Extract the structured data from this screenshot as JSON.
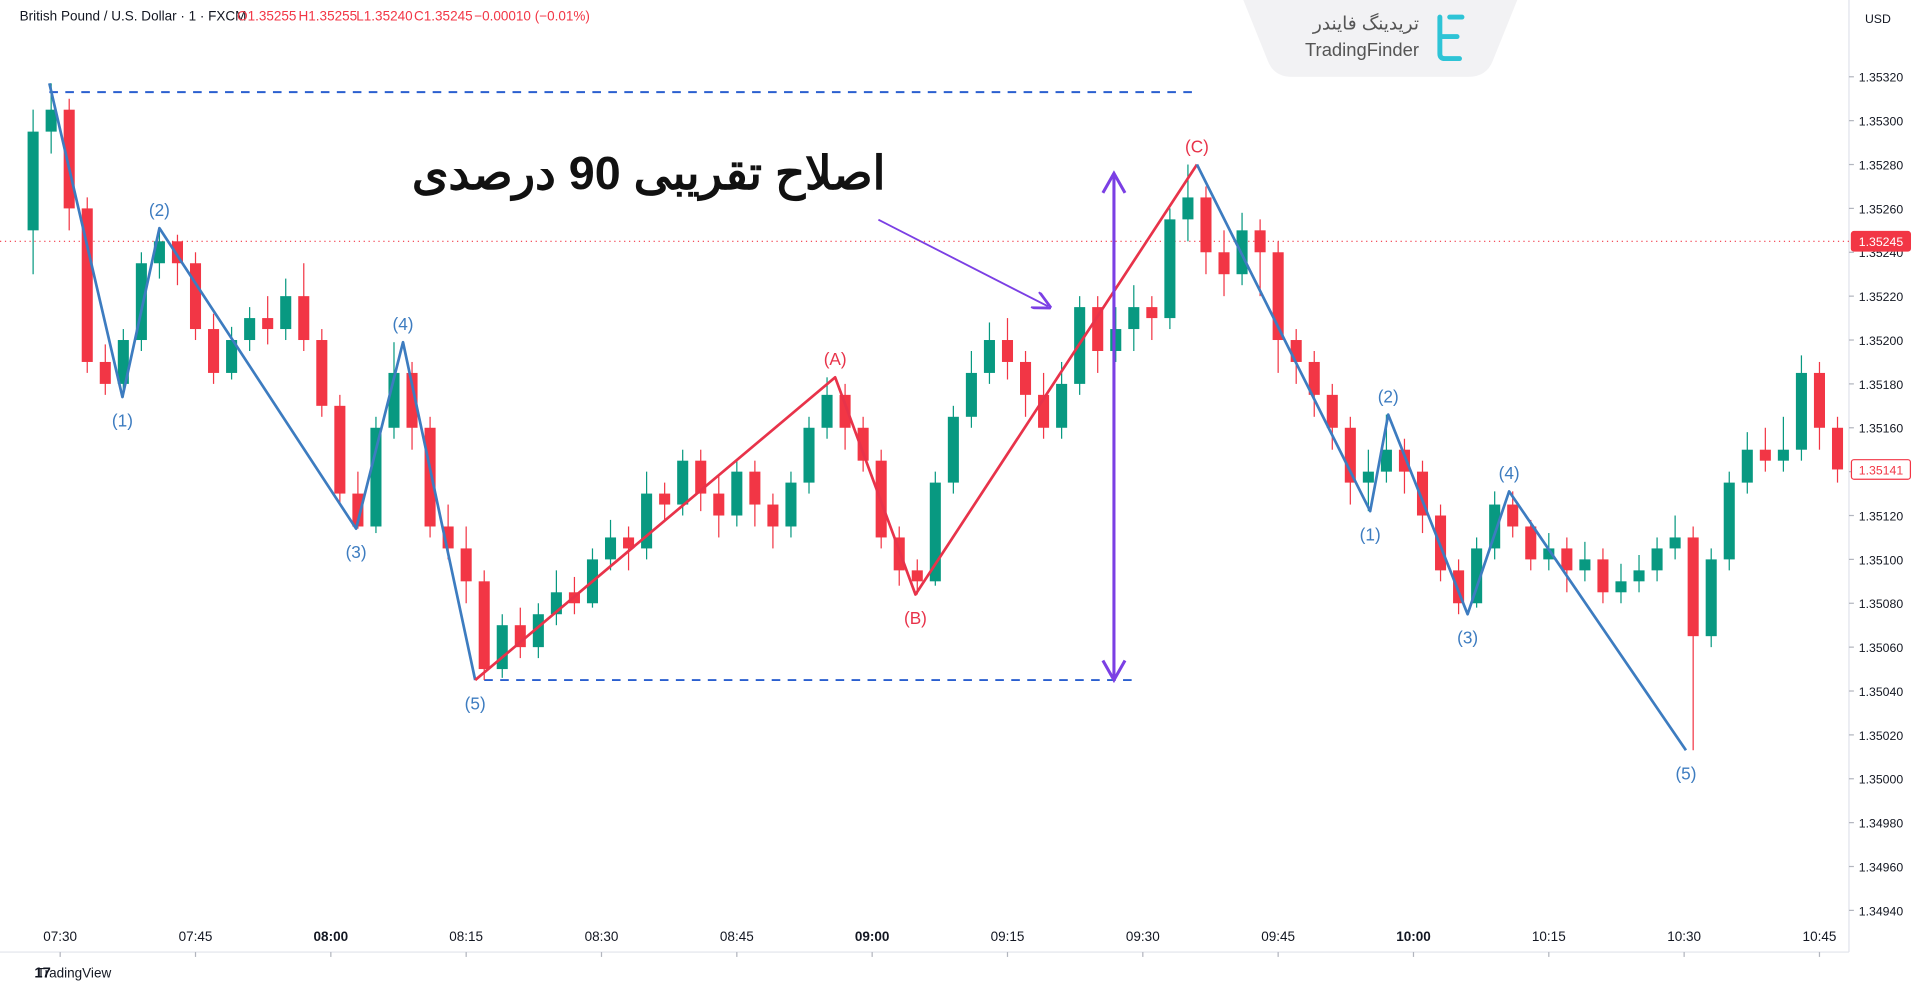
{
  "chart_data": {
    "type": "candlestick",
    "header": {
      "symbol": "British Pound / U.S. Dollar · 1 · FXCM",
      "open": "O1.35255",
      "high": "H1.35255",
      "low": "L1.35240",
      "close": "C1.35245",
      "change": "−0.00010 (−0.01%)"
    },
    "currency": "USD",
    "annotation": "اصلاح تقریبی 90 درصدی",
    "logo": {
      "fa": "تریدینگ فایندر",
      "en": "TradingFinder"
    },
    "footer": "TradingView",
    "up_color": "#089981",
    "down_color": "#f23645",
    "xlim": [
      443.33,
      648.27
    ],
    "ylim": [
      1.34921,
      1.35355
    ],
    "xticks": [
      {
        "value": 450,
        "label": "07:30"
      },
      {
        "value": 465,
        "label": "07:45"
      },
      {
        "value": 480,
        "label": "08:00"
      },
      {
        "value": 495,
        "label": "08:15"
      },
      {
        "value": 510,
        "label": "08:30"
      },
      {
        "value": 525,
        "label": "08:45"
      },
      {
        "value": 540,
        "label": "09:00"
      },
      {
        "value": 555,
        "label": "09:15"
      },
      {
        "value": 570,
        "label": "09:30"
      },
      {
        "value": 585,
        "label": "09:45"
      },
      {
        "value": 600,
        "label": "10:00"
      },
      {
        "value": 615,
        "label": "10:15"
      },
      {
        "value": 630,
        "label": "10:30"
      },
      {
        "value": 645,
        "label": "10:45"
      }
    ],
    "yticks": [
      {
        "value": 1.3494,
        "label": "1.34940"
      },
      {
        "value": 1.3496,
        "label": "1.34960"
      },
      {
        "value": 1.3498,
        "label": "1.34980"
      },
      {
        "value": 1.35,
        "label": "1.35000"
      },
      {
        "value": 1.3502,
        "label": "1.35020"
      },
      {
        "value": 1.3504,
        "label": "1.35040"
      },
      {
        "value": 1.3506,
        "label": "1.35060"
      },
      {
        "value": 1.3508,
        "label": "1.35080"
      },
      {
        "value": 1.351,
        "label": "1.35100"
      },
      {
        "value": 1.3512,
        "label": "1.35120"
      },
      {
        "value": 1.3514,
        "label": "1.35140"
      },
      {
        "value": 1.3516,
        "label": "1.35160"
      },
      {
        "value": 1.3518,
        "label": "1.35180"
      },
      {
        "value": 1.352,
        "label": "1.35200"
      },
      {
        "value": 1.3522,
        "label": "1.35220"
      },
      {
        "value": 1.3524,
        "label": "1.35240"
      },
      {
        "value": 1.3526,
        "label": "1.35260"
      },
      {
        "value": 1.3528,
        "label": "1.35280"
      },
      {
        "value": 1.353,
        "label": "1.35300"
      },
      {
        "value": 1.3532,
        "label": "1.35320"
      }
    ],
    "price_lines": [
      {
        "value": 1.35245,
        "label": "1.35245",
        "style": "filled"
      },
      {
        "value": 1.35141,
        "label": "1.35141",
        "style": "outline"
      }
    ],
    "x": [
      447,
      449,
      451,
      453,
      455,
      457,
      459,
      461,
      463,
      465,
      467,
      469,
      471,
      473,
      475,
      477,
      479,
      481,
      483,
      485,
      487,
      489,
      491,
      493,
      495,
      497,
      499,
      501,
      503,
      505,
      507,
      509,
      511,
      513,
      515,
      517,
      519,
      521,
      523,
      525,
      527,
      529,
      531,
      533,
      535,
      537,
      539,
      541,
      543,
      545,
      547,
      549,
      551,
      553,
      555,
      557,
      559,
      561,
      563,
      565,
      567,
      569,
      571,
      573,
      575,
      577,
      579,
      581,
      583,
      585,
      587,
      589,
      591,
      593,
      595,
      597,
      599,
      601,
      603,
      605,
      607,
      609,
      611,
      613,
      615,
      617,
      619,
      621,
      623,
      625,
      627,
      629,
      631,
      633,
      635,
      637,
      639,
      641,
      643,
      645,
      647
    ],
    "open": [
      1.3525,
      1.35295,
      1.35305,
      1.3526,
      1.3519,
      1.3518,
      1.352,
      1.35235,
      1.35245,
      1.35235,
      1.35205,
      1.35185,
      1.352,
      1.3521,
      1.35205,
      1.3522,
      1.352,
      1.3517,
      1.3513,
      1.35115,
      1.3516,
      1.35185,
      1.3516,
      1.35115,
      1.35105,
      1.3509,
      1.3505,
      1.3507,
      1.3506,
      1.35075,
      1.35085,
      1.3508,
      1.351,
      1.3511,
      1.35105,
      1.3513,
      1.35125,
      1.35145,
      1.3513,
      1.3512,
      1.3514,
      1.35125,
      1.35115,
      1.35135,
      1.3516,
      1.35175,
      1.3516,
      1.35145,
      1.3511,
      1.35095,
      1.3509,
      1.35135,
      1.35165,
      1.35185,
      1.352,
      1.3519,
      1.35175,
      1.3516,
      1.3518,
      1.35215,
      1.35195,
      1.35205,
      1.35215,
      1.3521,
      1.35255,
      1.35265,
      1.3524,
      1.3523,
      1.3525,
      1.3524,
      1.352,
      1.3519,
      1.35175,
      1.3516,
      1.35135,
      1.3514,
      1.3515,
      1.3514,
      1.3512,
      1.35095,
      1.3508,
      1.35105,
      1.35125,
      1.35115,
      1.351,
      1.35105,
      1.35095,
      1.351,
      1.35085,
      1.3509,
      1.35095,
      1.35105,
      1.3511,
      1.35065,
      1.351,
      1.35135,
      1.3515,
      1.35145,
      1.3515,
      1.35185,
      1.3516
    ],
    "high": [
      1.35305,
      1.35317,
      1.3531,
      1.35265,
      1.35198,
      1.35205,
      1.3524,
      1.35251,
      1.35248,
      1.3524,
      1.35212,
      1.35206,
      1.35215,
      1.3522,
      1.35228,
      1.35235,
      1.35205,
      1.35175,
      1.3514,
      1.35165,
      1.35199,
      1.3519,
      1.35165,
      1.35125,
      1.35115,
      1.35095,
      1.35075,
      1.35078,
      1.3508,
      1.35095,
      1.35092,
      1.35105,
      1.35118,
      1.35115,
      1.3514,
      1.35135,
      1.3515,
      1.3515,
      1.35138,
      1.35145,
      1.35145,
      1.3513,
      1.3514,
      1.35165,
      1.35183,
      1.3518,
      1.35165,
      1.3515,
      1.35115,
      1.351,
      1.3514,
      1.3517,
      1.35195,
      1.35208,
      1.3521,
      1.35195,
      1.35185,
      1.3519,
      1.3522,
      1.3522,
      1.35215,
      1.35225,
      1.3522,
      1.3526,
      1.3528,
      1.3527,
      1.3525,
      1.35258,
      1.35255,
      1.35245,
      1.35205,
      1.35195,
      1.3518,
      1.35165,
      1.3515,
      1.35166,
      1.35155,
      1.35145,
      1.35125,
      1.351,
      1.3511,
      1.35131,
      1.35131,
      1.35118,
      1.35112,
      1.3511,
      1.35108,
      1.35105,
      1.35098,
      1.35102,
      1.3511,
      1.3512,
      1.35115,
      1.35105,
      1.3514,
      1.35158,
      1.3516,
      1.35165,
      1.35193,
      1.3519,
      1.35165
    ],
    "low": [
      1.3523,
      1.35285,
      1.3525,
      1.35185,
      1.35175,
      1.35174,
      1.35195,
      1.35228,
      1.35225,
      1.352,
      1.3518,
      1.35182,
      1.35195,
      1.35198,
      1.352,
      1.35195,
      1.35165,
      1.35125,
      1.35114,
      1.35112,
      1.35155,
      1.3515,
      1.3511,
      1.351,
      1.3508,
      1.35045,
      1.35046,
      1.35055,
      1.35055,
      1.3507,
      1.35075,
      1.35078,
      1.35095,
      1.35095,
      1.351,
      1.35118,
      1.3512,
      1.35122,
      1.3511,
      1.35115,
      1.35115,
      1.35105,
      1.3511,
      1.3513,
      1.35155,
      1.3515,
      1.3514,
      1.35105,
      1.35088,
      1.35084,
      1.35088,
      1.3513,
      1.3516,
      1.3518,
      1.35182,
      1.35165,
      1.35155,
      1.35155,
      1.35175,
      1.35185,
      1.3519,
      1.35195,
      1.352,
      1.35205,
      1.35245,
      1.3523,
      1.3522,
      1.35225,
      1.3522,
      1.35185,
      1.3518,
      1.35165,
      1.3515,
      1.35125,
      1.35122,
      1.35135,
      1.3513,
      1.35112,
      1.3509,
      1.35075,
      1.35078,
      1.351,
      1.3511,
      1.35095,
      1.35095,
      1.35085,
      1.3509,
      1.3508,
      1.3508,
      1.35085,
      1.3509,
      1.351,
      1.35013,
      1.3506,
      1.35095,
      1.3513,
      1.3514,
      1.3514,
      1.35145,
      1.3515,
      1.35135
    ],
    "close": [
      1.35295,
      1.35305,
      1.3526,
      1.3519,
      1.3518,
      1.352,
      1.35235,
      1.35245,
      1.35235,
      1.35205,
      1.35185,
      1.352,
      1.3521,
      1.35205,
      1.3522,
      1.352,
      1.3517,
      1.3513,
      1.35115,
      1.3516,
      1.35185,
      1.3516,
      1.35115,
      1.35105,
      1.3509,
      1.3505,
      1.3507,
      1.3506,
      1.35075,
      1.35085,
      1.3508,
      1.351,
      1.3511,
      1.35105,
      1.3513,
      1.35125,
      1.35145,
      1.3513,
      1.3512,
      1.3514,
      1.35125,
      1.35115,
      1.35135,
      1.3516,
      1.35175,
      1.3516,
      1.35145,
      1.3511,
      1.35095,
      1.3509,
      1.35135,
      1.35165,
      1.35185,
      1.352,
      1.3519,
      1.35175,
      1.3516,
      1.3518,
      1.35215,
      1.35195,
      1.35205,
      1.35215,
      1.3521,
      1.35255,
      1.35265,
      1.3524,
      1.3523,
      1.3525,
      1.3524,
      1.352,
      1.3519,
      1.35175,
      1.3516,
      1.35135,
      1.3514,
      1.3515,
      1.3514,
      1.3512,
      1.35095,
      1.3508,
      1.35105,
      1.35125,
      1.35115,
      1.351,
      1.35105,
      1.35095,
      1.351,
      1.35085,
      1.3509,
      1.35095,
      1.35105,
      1.3511,
      1.35065,
      1.351,
      1.35135,
      1.3515,
      1.35145,
      1.3515,
      1.35185,
      1.3516,
      1.35141
    ],
    "wave_points": [
      {
        "label": null,
        "x": 448.8,
        "y": 1.35317
      },
      {
        "label": "(1)",
        "x": 456.9,
        "y": 1.35174
      },
      {
        "label": "(2)",
        "x": 461,
        "y": 1.35251
      },
      {
        "label": "(3)",
        "x": 482.8,
        "y": 1.35114
      },
      {
        "label": "(4)",
        "x": 488,
        "y": 1.35199
      },
      {
        "label": "(5)",
        "x": 496,
        "y": 1.35045
      },
      {
        "label": "(A)",
        "x": 535.9,
        "y": 1.35183
      },
      {
        "label": "(B)",
        "x": 544.8,
        "y": 1.35084
      },
      {
        "label": "(C)",
        "x": 576,
        "y": 1.3528
      },
      {
        "label": "(1)",
        "x": 595.2,
        "y": 1.35122
      },
      {
        "label": "(2)",
        "x": 597.2,
        "y": 1.35166
      },
      {
        "label": "(3)",
        "x": 606,
        "y": 1.35075
      },
      {
        "label": "(4)",
        "x": 610.6,
        "y": 1.35131
      },
      {
        "label": "(5)",
        "x": 630.2,
        "y": 1.35013
      }
    ],
    "waves": [
      {
        "color": "#3d7cc0",
        "points": [
          0,
          1,
          2,
          3,
          4,
          5
        ]
      },
      {
        "color": "#e8334a",
        "points": [
          5,
          6,
          7,
          8
        ]
      },
      {
        "color": "#3d7cc0",
        "points": [
          8,
          9,
          10,
          11,
          12,
          13
        ]
      }
    ],
    "levels": [
      {
        "y": 1.35313,
        "from": 448.8,
        "to": 575.6,
        "color": "#2a5fcf"
      },
      {
        "y": 1.35045,
        "from": 497,
        "to": 569.2,
        "color": "#2a5fcf"
      }
    ],
    "retracement_arrow": {
      "x": 566.8,
      "from": 1.35045,
      "to": 1.35276,
      "color": "#7b3fe4"
    }
  }
}
